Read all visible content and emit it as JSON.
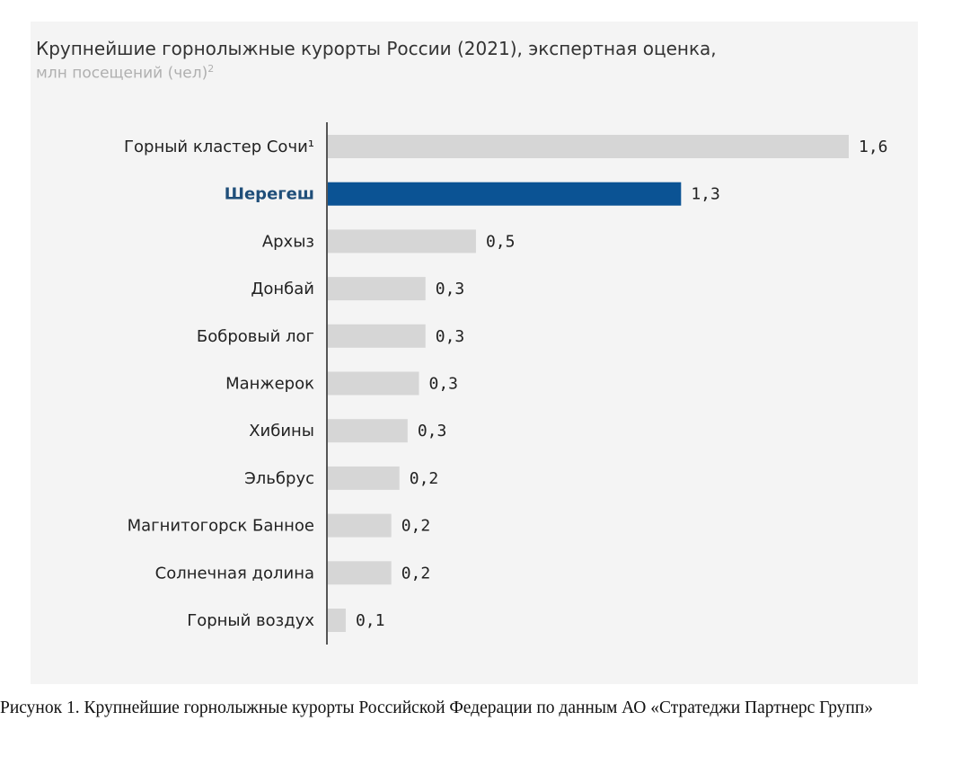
{
  "chart_data": {
    "type": "bar",
    "orientation": "horizontal",
    "title": "Крупнейшие горнолыжные курорты России (2021), экспертная оценка,",
    "subtitle": "млн посещений  (чел)",
    "subtitle_superscript": "2",
    "categories": [
      "Горный кластер Сочи¹",
      "Шерегеш",
      "Архыз",
      "Донбай",
      "Бобровый лог",
      "Манжерок",
      "Хибины",
      "Эльбрус",
      "Магнитогорск Банное",
      "Солнечная долина",
      "Горный воздух"
    ],
    "values": [
      1.6,
      1.3,
      0.5,
      0.3,
      0.3,
      0.3,
      0.3,
      0.2,
      0.2,
      0.2,
      0.1
    ],
    "value_labels": [
      "1,6",
      "1,3",
      "0,5",
      "0,3",
      "0,3",
      "0,3",
      "0,3",
      "0,2",
      "0,2",
      "0,2",
      "0,1"
    ],
    "bar_lengths_relative": [
      1.6,
      1.085,
      0.455,
      0.3,
      0.3,
      0.28,
      0.245,
      0.22,
      0.195,
      0.195,
      0.055
    ],
    "highlight_index": 1,
    "colors": {
      "bar": "#d6d6d6",
      "highlight_bar": "#0b5394",
      "highlight_label": "#1f4e79",
      "label": "#222222",
      "axis": "#555555",
      "subtitle": "#b0b0b0",
      "background": "#f4f4f4"
    },
    "grid": false,
    "legend": "none"
  },
  "caption": "Рисунок 1. Крупнейшие горнолыжные курорты Российской Федерации по данным АО «Стратеджи Партнерс Групп»"
}
